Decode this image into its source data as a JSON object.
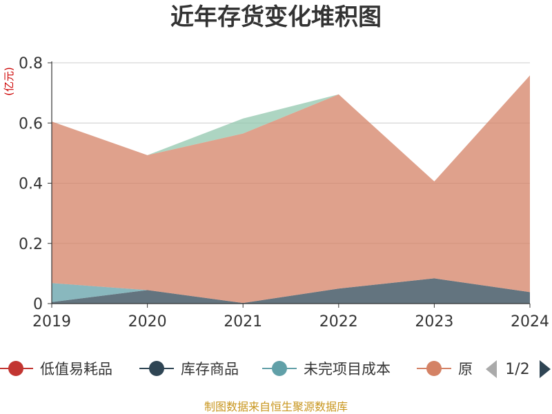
{
  "chart_data": {
    "type": "area",
    "stacked": true,
    "title": "近年存货变化堆积图",
    "unit_label": "(亿元)",
    "categories": [
      "2019",
      "2020",
      "2021",
      "2022",
      "2023",
      "2024"
    ],
    "ylim": [
      0,
      0.8
    ],
    "y_ticks": [
      "0",
      "0.2",
      "0.4",
      "0.6",
      "0.8"
    ],
    "grid": true,
    "legend_position": "bottom",
    "series": [
      {
        "name": "低值易耗品",
        "color": "#c23531",
        "values": [
          0,
          0,
          0,
          0,
          0,
          0
        ]
      },
      {
        "name": "库存商品",
        "color": "#2f4554",
        "values": [
          0.005,
          0.045,
          0.002,
          0.05,
          0.084,
          0.038
        ]
      },
      {
        "name": "未完项目成本",
        "color": "#61a0a8",
        "values": [
          0.063,
          0,
          0,
          0,
          0,
          0
        ]
      },
      {
        "name": "原材料",
        "color": "#d48265",
        "values": [
          0.537,
          0.448,
          0.563,
          0.645,
          0.322,
          0.72
        ]
      },
      {
        "name": "",
        "color": "#91c7ae",
        "values": [
          0,
          0,
          0.05,
          0,
          0,
          0
        ]
      }
    ]
  },
  "legend": {
    "items": [
      {
        "label": "低值易耗品",
        "color": "#c23531"
      },
      {
        "label": "库存商品",
        "color": "#2f4554"
      },
      {
        "label": "未完项目成本",
        "color": "#61a0a8"
      },
      {
        "label": "原",
        "color": "#d48265"
      }
    ],
    "page_indicator": "1/2"
  },
  "source_text": "制图数据来自恒生聚源数据库"
}
